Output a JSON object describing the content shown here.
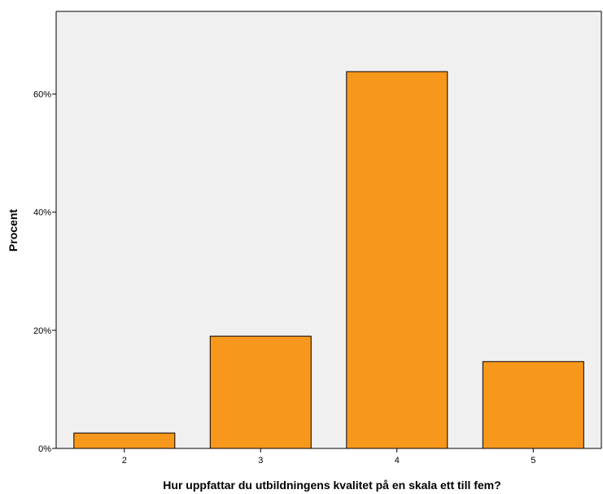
{
  "chart_data": {
    "type": "bar",
    "title": "",
    "xlabel": "Hur uppfattar du utbildningens kvalitet på en skala ett till fem?",
    "ylabel": "Procent",
    "categories": [
      "2",
      "3",
      "4",
      "5"
    ],
    "values": [
      2.6,
      19.0,
      63.8,
      14.7
    ],
    "value_unit": "%",
    "ylim": [
      0,
      74
    ],
    "yticks": [
      0,
      20,
      40,
      60
    ],
    "ytick_labels": [
      "0%",
      "20%",
      "40%",
      "60%"
    ],
    "grid": false,
    "legend": "none",
    "colors": {
      "bar_fill": "#f7981d",
      "plot_background": "#f0f0f0",
      "axis": "#000000"
    }
  }
}
